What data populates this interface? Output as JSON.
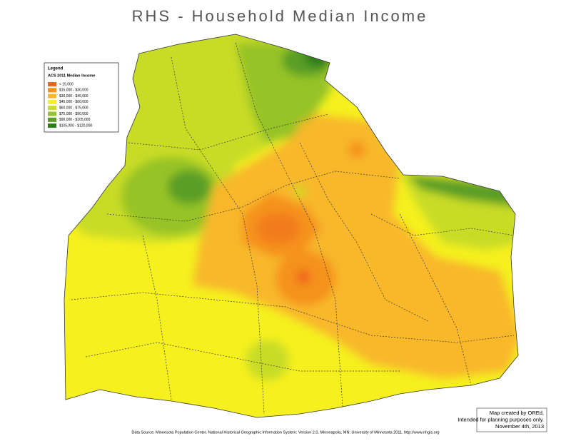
{
  "header": {
    "title": "RHS - Household Median Income"
  },
  "legend": {
    "title": "Legend",
    "subtitle": "ACS 2011 Median Income",
    "items": [
      {
        "label": "< 15,000",
        "color": "#f0641e"
      },
      {
        "label": "$15,000 - $30,000",
        "color": "#f5921e"
      },
      {
        "label": "$30,000 - $45,000",
        "color": "#f8b82a"
      },
      {
        "label": "$45,000 - $60,000",
        "color": "#f5f01e"
      },
      {
        "label": "$60,000 - $75,000",
        "color": "#c8dc28"
      },
      {
        "label": "$75,000 - $90,000",
        "color": "#96c328"
      },
      {
        "label": "$90,000 - $105,000",
        "color": "#5a9e28"
      },
      {
        "label": "$105,000 - $120,000",
        "color": "#2d7d1e"
      }
    ]
  },
  "credit": {
    "lines": [
      "Map created by OREd,",
      "Intended for planning purposes only.",
      "November 4th, 2013"
    ]
  },
  "footer": {
    "source": "Data Source: Minnesota Population Center. National Historical Geographic Information System: Version 2.0. Minneapolis, MN: University of Minnesota 2011. http://www.nhgis.org"
  }
}
